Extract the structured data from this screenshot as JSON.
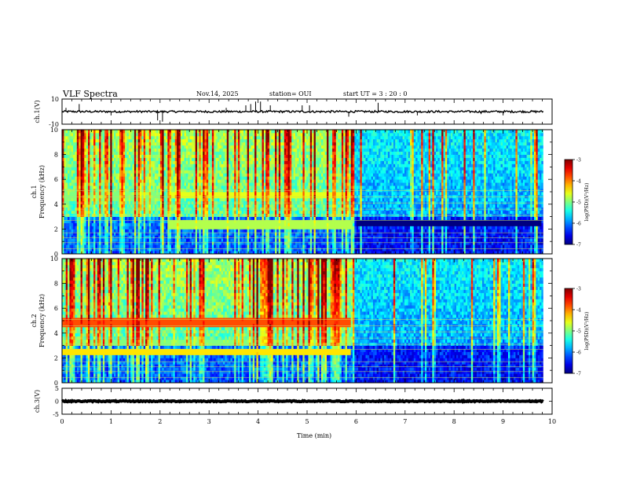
{
  "header": {
    "title": "VLF Spectra",
    "date": "Nov.14, 2025",
    "station": "station= OUI",
    "start": "start  UT =   3 : 20 : 0"
  },
  "chart_data": {
    "type": "heatmap",
    "xlabel": "Time  (min)",
    "xlim": [
      0,
      10
    ],
    "xticks": [
      "0",
      "1",
      "2",
      "3",
      "4",
      "5",
      "6",
      "7",
      "8",
      "9",
      "10"
    ],
    "panels": [
      {
        "id": "ch1-waveform",
        "type": "line",
        "ylabel": "ch.1(V)",
        "ylim": [
          -10,
          10
        ],
        "yticks": [
          "10",
          "-10"
        ],
        "baseline": 0,
        "noise_amplitude": 0.8,
        "spikes": [
          {
            "t": 0.08,
            "v": 3
          },
          {
            "t": 0.35,
            "v": 6
          },
          {
            "t": 1.0,
            "v": -3
          },
          {
            "t": 1.95,
            "v": -7
          },
          {
            "t": 2.05,
            "v": -8
          },
          {
            "t": 3.35,
            "v": 3
          },
          {
            "t": 3.75,
            "v": 5
          },
          {
            "t": 3.85,
            "v": 6
          },
          {
            "t": 3.95,
            "v": 8
          },
          {
            "t": 4.05,
            "v": 8
          },
          {
            "t": 4.25,
            "v": 5
          },
          {
            "t": 4.9,
            "v": 5
          },
          {
            "t": 5.05,
            "v": 5
          },
          {
            "t": 5.85,
            "v": -4
          },
          {
            "t": 6.45,
            "v": 7
          },
          {
            "t": 7.25,
            "v": -3
          },
          {
            "t": 8.55,
            "v": -2
          },
          {
            "t": 9.0,
            "v": -3
          }
        ]
      },
      {
        "id": "ch1-spectrogram",
        "type": "heatmap",
        "channel_label": "ch.1",
        "ylabel": "Frequency  (kHz)",
        "ylim": [
          0,
          10
        ],
        "yticks": [
          "0",
          "2",
          "4",
          "6",
          "8",
          "10"
        ],
        "colorbar": {
          "label": "log(PSD)(V²/Hz)",
          "range": [
            -7,
            -3
          ],
          "ticks": [
            "-3",
            "-4",
            "-5",
            "-6",
            "-7"
          ]
        },
        "bands": [
          {
            "t_start": 2.15,
            "t_end": 5.9,
            "freq_khz": 4.8,
            "level": -4.6
          },
          {
            "t_start": 2.15,
            "t_end": 5.9,
            "freq_khz": 2.4,
            "level": -4.8
          },
          {
            "t_start": 0.0,
            "t_end": 2.0,
            "freq_khz": 4.6,
            "level": -5.0
          },
          {
            "t_start": 6.0,
            "t_end": 9.8,
            "freq_khz": 2.5,
            "level": -7.0
          }
        ],
        "quiet_after_min": 5.95
      },
      {
        "id": "ch2-spectrogram",
        "type": "heatmap",
        "channel_label": "ch.2",
        "ylabel": "Frequency  (kHz)",
        "ylim": [
          0,
          10
        ],
        "yticks": [
          "0",
          "2",
          "4",
          "6",
          "8",
          "10"
        ],
        "colorbar": {
          "label": "log(PSD)(V²/Hz)",
          "range": [
            -7,
            -3
          ],
          "ticks": [
            "-3",
            "-4",
            "-5",
            "-6",
            "-7"
          ]
        },
        "bands": [
          {
            "t_start": 0.0,
            "t_end": 5.9,
            "freq_khz": 4.9,
            "level": -3.8
          },
          {
            "t_start": 0.0,
            "t_end": 5.9,
            "freq_khz": 2.5,
            "level": -4.4
          },
          {
            "t_start": 0.0,
            "t_end": 5.9,
            "freq_khz": 3.3,
            "level": -5.0
          }
        ],
        "quiet_after_min": 5.95
      },
      {
        "id": "ch3-waveform",
        "type": "line",
        "ylabel": "ch.3(V)",
        "ylim": [
          -5,
          5
        ],
        "yticks": [
          "5",
          "0",
          "-5"
        ],
        "baseline": 0,
        "noise_amplitude": 0.2,
        "spikes": []
      }
    ]
  }
}
